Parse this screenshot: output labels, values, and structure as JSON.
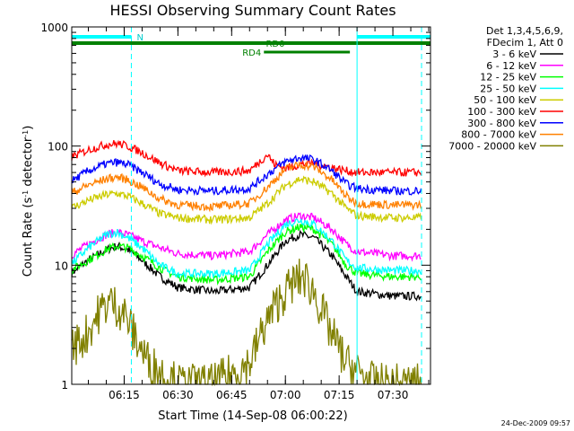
{
  "chart_data": {
    "type": "line",
    "title": "HESSI Observing Summary Count Rates",
    "xlabel": "Start Time (14-Sep-08 06:00:22)",
    "ylabel_main": "Count Rate (s",
    "ylabel_sup1": "-1",
    "ylabel_mid": " detector",
    "ylabel_sup2": "-1",
    "ylabel_end": ")",
    "y_scale": "log",
    "ylim": [
      1,
      1000
    ],
    "xlim": [
      "06:00:22",
      "07:40:30"
    ],
    "x_ticks": [
      "06:15",
      "06:30",
      "06:45",
      "07:00",
      "07:15",
      "07:30"
    ],
    "y_ticks": [
      "1",
      "10",
      "100",
      "1000"
    ],
    "legend_header": [
      "Det 1,3,4,5,6,9,",
      "FDecim 1, Att 0"
    ],
    "footer": "24-Dec-2009 09:57",
    "annotations": {
      "n_label": "N",
      "rd0_label": "RD0",
      "rd4_label": "RD4"
    },
    "flags": {
      "night": [
        [
          "06:00:22",
          "06:17:00"
        ],
        [
          "07:20:00",
          "07:40:30"
        ]
      ],
      "rd0": [
        [
          "06:00:22",
          "07:20:00"
        ],
        [
          "07:20:00",
          "07:40:30"
        ]
      ],
      "rd4": [
        [
          "06:54:00",
          "07:18:00"
        ]
      ]
    },
    "gaps": [
      {
        "start": "06:17:00",
        "end": "07:38:00",
        "color": "#00ffff"
      }
    ],
    "orbit_marks": [
      "07:20:00"
    ],
    "series": [
      {
        "name": "3 - 6 keV",
        "color": "#000000",
        "points": [
          [
            "06:00",
            8.5
          ],
          [
            "06:05",
            11
          ],
          [
            "06:10",
            13.5
          ],
          [
            "06:13",
            14.5
          ],
          [
            "06:16",
            13.5
          ],
          [
            "06:20",
            11
          ],
          [
            "06:25",
            8
          ],
          [
            "06:30",
            6.5
          ],
          [
            "06:40",
            6
          ],
          [
            "06:50",
            6.5
          ],
          [
            "06:55",
            10
          ],
          [
            "07:00",
            16
          ],
          [
            "07:04",
            18
          ],
          [
            "07:08",
            17
          ],
          [
            "07:13",
            12
          ],
          [
            "07:17",
            8
          ],
          [
            "07:20",
            6
          ],
          [
            "07:30",
            5.5
          ],
          [
            "07:38",
            5.5
          ]
        ]
      },
      {
        "name": "6 - 12 keV",
        "color": "#ff00ff",
        "points": [
          [
            "06:00",
            12
          ],
          [
            "06:05",
            15
          ],
          [
            "06:10",
            18
          ],
          [
            "06:13",
            19
          ],
          [
            "06:16",
            18
          ],
          [
            "06:20",
            16
          ],
          [
            "06:25",
            14
          ],
          [
            "06:30",
            12.5
          ],
          [
            "06:40",
            12
          ],
          [
            "06:50",
            13
          ],
          [
            "06:55",
            18
          ],
          [
            "07:00",
            24
          ],
          [
            "07:04",
            26
          ],
          [
            "07:08",
            25
          ],
          [
            "07:13",
            20
          ],
          [
            "07:17",
            15
          ],
          [
            "07:20",
            13
          ],
          [
            "07:30",
            12
          ],
          [
            "07:38",
            12
          ]
        ]
      },
      {
        "name": "12 - 25 keV",
        "color": "#00ff00",
        "points": [
          [
            "06:00",
            9
          ],
          [
            "06:05",
            11
          ],
          [
            "06:10",
            13.5
          ],
          [
            "06:13",
            14.5
          ],
          [
            "06:16",
            14
          ],
          [
            "06:20",
            12
          ],
          [
            "06:25",
            9.5
          ],
          [
            "06:30",
            8
          ],
          [
            "06:40",
            7.5
          ],
          [
            "06:50",
            8
          ],
          [
            "06:55",
            13
          ],
          [
            "07:00",
            19
          ],
          [
            "07:04",
            21
          ],
          [
            "07:08",
            20
          ],
          [
            "07:13",
            15
          ],
          [
            "07:17",
            10
          ],
          [
            "07:20",
            8.5
          ],
          [
            "07:30",
            8
          ],
          [
            "07:38",
            8
          ]
        ]
      },
      {
        "name": "25 - 50 keV",
        "color": "#00ffff",
        "points": [
          [
            "06:00",
            10
          ],
          [
            "06:05",
            14
          ],
          [
            "06:10",
            18
          ],
          [
            "06:13",
            19
          ],
          [
            "06:16",
            17
          ],
          [
            "06:20",
            14
          ],
          [
            "06:25",
            10
          ],
          [
            "06:30",
            8.5
          ],
          [
            "06:40",
            8.5
          ],
          [
            "06:50",
            9
          ],
          [
            "06:55",
            15
          ],
          [
            "07:00",
            22
          ],
          [
            "07:04",
            24
          ],
          [
            "07:08",
            22
          ],
          [
            "07:13",
            16
          ],
          [
            "07:17",
            11
          ],
          [
            "07:20",
            9.5
          ],
          [
            "07:30",
            9
          ],
          [
            "07:38",
            9
          ]
        ]
      },
      {
        "name": "50 - 100 keV",
        "color": "#cccc00",
        "points": [
          [
            "06:00",
            30
          ],
          [
            "06:05",
            35
          ],
          [
            "06:10",
            39
          ],
          [
            "06:13",
            40
          ],
          [
            "06:16",
            38
          ],
          [
            "06:20",
            33
          ],
          [
            "06:25",
            27
          ],
          [
            "06:30",
            25
          ],
          [
            "06:40",
            24
          ],
          [
            "06:50",
            25
          ],
          [
            "06:55",
            33
          ],
          [
            "07:00",
            47
          ],
          [
            "07:04",
            53
          ],
          [
            "07:08",
            50
          ],
          [
            "07:13",
            40
          ],
          [
            "07:17",
            30
          ],
          [
            "07:20",
            26
          ],
          [
            "07:30",
            25
          ],
          [
            "07:38",
            25
          ]
        ]
      },
      {
        "name": "100 - 300 keV",
        "color": "#ff0000",
        "points": [
          [
            "06:00",
            80
          ],
          [
            "06:05",
            93
          ],
          [
            "06:10",
            103
          ],
          [
            "06:13",
            105
          ],
          [
            "06:16",
            100
          ],
          [
            "06:20",
            88
          ],
          [
            "06:25",
            72
          ],
          [
            "06:30",
            62
          ],
          [
            "06:40",
            60
          ],
          [
            "06:50",
            62
          ],
          [
            "06:55",
            85
          ],
          [
            "06:57",
            70
          ],
          [
            "07:00",
            65
          ],
          [
            "07:04",
            70
          ],
          [
            "07:08",
            72
          ],
          [
            "07:13",
            66
          ],
          [
            "07:17",
            62
          ],
          [
            "07:20",
            60
          ],
          [
            "07:30",
            60
          ],
          [
            "07:38",
            60
          ]
        ]
      },
      {
        "name": "300 - 800 keV",
        "color": "#0000ff",
        "points": [
          [
            "06:00",
            50
          ],
          [
            "06:05",
            62
          ],
          [
            "06:10",
            71
          ],
          [
            "06:13",
            73
          ],
          [
            "06:16",
            70
          ],
          [
            "06:20",
            60
          ],
          [
            "06:25",
            48
          ],
          [
            "06:30",
            43
          ],
          [
            "06:40",
            42
          ],
          [
            "06:50",
            44
          ],
          [
            "06:55",
            58
          ],
          [
            "07:00",
            74
          ],
          [
            "07:04",
            80
          ],
          [
            "07:08",
            77
          ],
          [
            "07:13",
            62
          ],
          [
            "07:17",
            48
          ],
          [
            "07:20",
            44
          ],
          [
            "07:30",
            42
          ],
          [
            "07:38",
            42
          ]
        ]
      },
      {
        "name": "800 - 7000 keV",
        "color": "#ff8000",
        "points": [
          [
            "06:00",
            40
          ],
          [
            "06:05",
            47
          ],
          [
            "06:10",
            53
          ],
          [
            "06:13",
            55
          ],
          [
            "06:16",
            52
          ],
          [
            "06:20",
            45
          ],
          [
            "06:25",
            36
          ],
          [
            "06:30",
            32
          ],
          [
            "06:40",
            31
          ],
          [
            "06:50",
            33
          ],
          [
            "06:55",
            45
          ],
          [
            "07:00",
            64
          ],
          [
            "07:04",
            70
          ],
          [
            "07:08",
            67
          ],
          [
            "07:13",
            52
          ],
          [
            "07:17",
            38
          ],
          [
            "07:20",
            33
          ],
          [
            "07:30",
            32
          ],
          [
            "07:38",
            32
          ]
        ]
      },
      {
        "name": "7000 - 20000 keV",
        "color": "#808000",
        "points": [
          [
            "06:00",
            2
          ],
          [
            "06:04",
            2.5
          ],
          [
            "06:08",
            4
          ],
          [
            "06:11",
            5
          ],
          [
            "06:15",
            4
          ],
          [
            "06:18",
            2.5
          ],
          [
            "06:22",
            1.5
          ],
          [
            "06:30",
            1
          ],
          [
            "06:40",
            1
          ],
          [
            "06:50",
            1.5
          ],
          [
            "06:54",
            3
          ],
          [
            "06:58",
            5
          ],
          [
            "07:02",
            7
          ],
          [
            "07:05",
            8
          ],
          [
            "07:08",
            6
          ],
          [
            "07:12",
            3
          ],
          [
            "07:17",
            1.5
          ],
          [
            "07:25",
            1
          ],
          [
            "07:38",
            1
          ]
        ]
      }
    ]
  }
}
